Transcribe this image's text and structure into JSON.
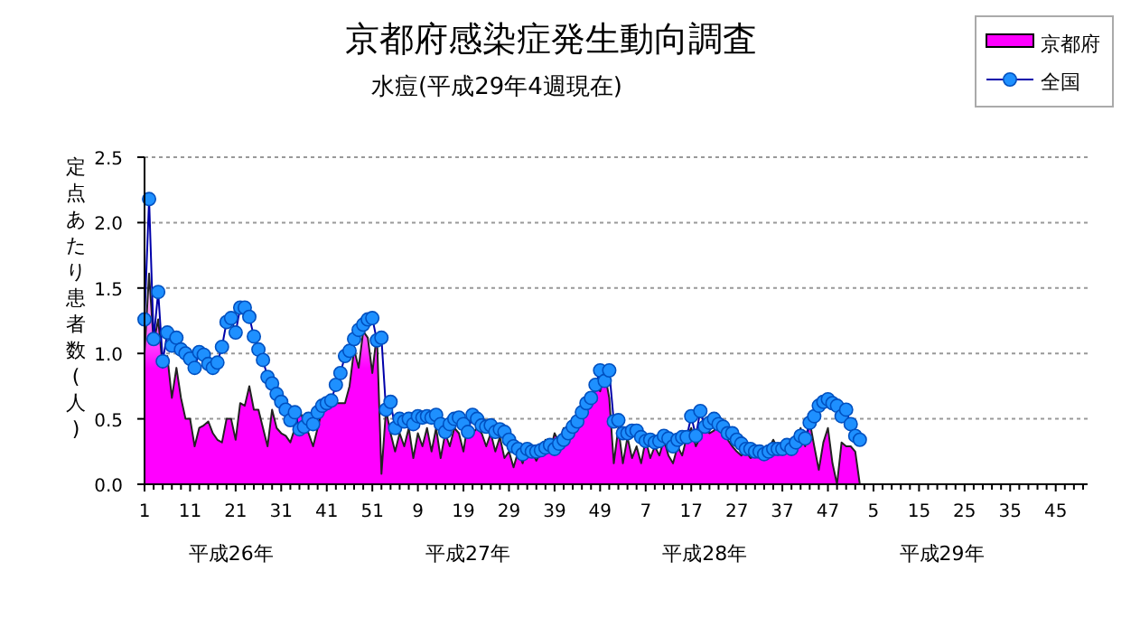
{
  "chart_data": {
    "type": "area",
    "title": "京都府感染症発生動向調査",
    "subtitle": "水痘(平成29年4週現在)",
    "ylabel": "定点あたり患者数(人)",
    "annotations": [
      "平成26年",
      "平成27年",
      "平成28年",
      "平成29年"
    ],
    "categories": [
      "1",
      null,
      null,
      null,
      null,
      null,
      null,
      null,
      null,
      null,
      "11",
      null,
      null,
      null,
      null,
      null,
      null,
      null,
      null,
      null,
      "21",
      null,
      null,
      null,
      null,
      null,
      null,
      null,
      null,
      null,
      "31",
      null,
      null,
      null,
      null,
      null,
      null,
      null,
      null,
      null,
      "41",
      null,
      null,
      null,
      null,
      null,
      null,
      null,
      null,
      null,
      "51",
      null,
      null,
      null,
      null,
      null,
      null,
      null,
      null,
      null,
      "9",
      null,
      null,
      null,
      null,
      null,
      null,
      null,
      null,
      null,
      "19",
      null,
      null,
      null,
      null,
      null,
      null,
      null,
      null,
      null,
      "29",
      null,
      null,
      null,
      null,
      null,
      null,
      null,
      null,
      null,
      "39",
      null,
      null,
      null,
      null,
      null,
      null,
      null,
      null,
      null,
      "49",
      null,
      null,
      null,
      null,
      null,
      null,
      null,
      null,
      null,
      "7",
      null,
      null,
      null,
      null,
      null,
      null,
      null,
      null,
      null,
      "17",
      null,
      null,
      null,
      null,
      null,
      null,
      null,
      null,
      null,
      "27",
      null,
      null,
      null,
      null,
      null,
      null,
      null,
      null,
      null,
      "37",
      null,
      null,
      null,
      null,
      null,
      null,
      null,
      null,
      null,
      "47",
      null,
      null,
      null,
      null,
      null,
      null,
      null,
      null,
      null,
      "5",
      null,
      null,
      null,
      null,
      null,
      null,
      null,
      null,
      null,
      "15",
      null,
      null,
      null,
      null,
      null,
      null,
      null,
      null,
      null,
      "25",
      null,
      null,
      null,
      null,
      null,
      null,
      null,
      null,
      null,
      "35",
      null,
      null,
      null,
      null,
      null,
      null,
      null,
      null,
      null,
      "45",
      null,
      null,
      null,
      null,
      null,
      null,
      null
    ],
    "ylim": [
      0,
      2.5
    ],
    "yticks": [
      {
        "value": 0,
        "label": "0.0"
      },
      {
        "value": 0.5,
        "label": "0.5"
      },
      {
        "value": 1,
        "label": "1.0"
      },
      {
        "value": 1.5,
        "label": "1.5"
      },
      {
        "value": 2,
        "label": "2.0"
      },
      {
        "value": 2.5,
        "label": "2.5"
      }
    ],
    "grid": "y",
    "legend": "top right",
    "series": [
      {
        "name": "京都府",
        "color": "#ff00ff",
        "values": [
          1.0,
          1.61,
          1.08,
          1.26,
          0.89,
          0.98,
          0.66,
          0.89,
          0.66,
          0.5,
          0.5,
          0.29,
          0.43,
          0.45,
          0.48,
          0.39,
          0.34,
          0.32,
          0.5,
          0.5,
          0.34,
          0.62,
          0.6,
          0.75,
          0.57,
          0.57,
          0.43,
          0.29,
          0.57,
          0.43,
          0.39,
          0.37,
          0.32,
          0.43,
          0.57,
          0.48,
          0.39,
          0.29,
          0.43,
          0.57,
          0.6,
          0.62,
          0.62,
          0.62,
          0.62,
          0.75,
          1.03,
          0.89,
          1.17,
          1.12,
          0.85,
          1.15,
          0.08,
          0.57,
          0.39,
          0.25,
          0.39,
          0.29,
          0.43,
          0.2,
          0.39,
          0.29,
          0.43,
          0.25,
          0.43,
          0.2,
          0.39,
          0.29,
          0.43,
          0.39,
          0.25,
          0.48,
          0.39,
          0.43,
          0.39,
          0.29,
          0.39,
          0.25,
          0.36,
          0.2,
          0.25,
          0.13,
          0.25,
          0.16,
          0.29,
          0.25,
          0.18,
          0.25,
          0.34,
          0.25,
          0.39,
          0.32,
          0.43,
          0.39,
          0.48,
          0.52,
          0.57,
          0.66,
          0.62,
          0.8,
          0.71,
          0.85,
          0.66,
          0.16,
          0.43,
          0.16,
          0.36,
          0.2,
          0.29,
          0.16,
          0.34,
          0.2,
          0.29,
          0.22,
          0.34,
          0.22,
          0.16,
          0.29,
          0.22,
          0.36,
          0.43,
          0.29,
          0.36,
          0.43,
          0.39,
          0.41,
          0.5,
          0.39,
          0.34,
          0.29,
          0.25,
          0.22,
          0.25,
          0.2,
          0.22,
          0.25,
          0.22,
          0.27,
          0.34,
          0.27,
          0.25,
          0.32,
          0.29,
          0.34,
          0.43,
          0.29,
          0.48,
          0.29,
          0.11,
          0.32,
          0.43,
          0.16,
          0,
          0.32,
          0.29,
          0.29,
          0.25,
          0,
          null,
          null,
          null,
          null,
          null,
          null,
          null,
          null,
          null,
          null,
          null,
          null,
          null,
          null,
          null,
          null,
          null,
          null,
          null,
          null,
          null,
          null,
          null,
          null,
          null,
          null,
          null,
          null,
          null,
          null,
          null,
          null,
          null,
          null,
          null,
          null,
          null,
          null,
          null,
          null,
          null,
          null,
          null,
          null,
          null,
          null,
          null,
          null,
          null,
          null
        ]
      },
      {
        "name": "全国",
        "type": "line",
        "color": "#1e90ff",
        "marker": "circle",
        "values": [
          1.26,
          2.18,
          1.11,
          1.47,
          0.94,
          1.16,
          1.06,
          1.12,
          1.03,
          1.0,
          0.96,
          0.89,
          1.01,
          0.99,
          0.92,
          0.89,
          0.93,
          1.05,
          1.24,
          1.27,
          1.16,
          1.35,
          1.35,
          1.28,
          1.13,
          1.03,
          0.95,
          0.82,
          0.77,
          0.69,
          0.63,
          0.57,
          0.49,
          0.55,
          0.42,
          0.44,
          0.5,
          0.46,
          0.55,
          0.6,
          0.62,
          0.64,
          0.76,
          0.85,
          0.98,
          1.02,
          1.11,
          1.18,
          1.22,
          1.26,
          1.27,
          1.1,
          1.12,
          0.57,
          0.63,
          0.43,
          0.5,
          0.48,
          0.5,
          0.46,
          0.52,
          0.51,
          0.52,
          0.51,
          0.53,
          0.46,
          0.4,
          0.46,
          0.5,
          0.51,
          0.46,
          0.4,
          0.53,
          0.5,
          0.45,
          0.44,
          0.45,
          0.4,
          0.42,
          0.4,
          0.34,
          0.29,
          0.27,
          0.23,
          0.27,
          0.25,
          0.25,
          0.26,
          0.28,
          0.3,
          0.27,
          0.31,
          0.34,
          0.39,
          0.44,
          0.48,
          0.55,
          0.62,
          0.66,
          0.76,
          0.87,
          0.79,
          0.87,
          0.48,
          0.49,
          0.39,
          0.39,
          0.41,
          0.41,
          0.36,
          0.33,
          0.34,
          0.32,
          0.33,
          0.37,
          0.35,
          0.29,
          0.34,
          0.36,
          0.36,
          0.52,
          0.37,
          0.56,
          0.44,
          0.47,
          0.5,
          0.46,
          0.44,
          0.39,
          0.39,
          0.34,
          0.31,
          0.27,
          0.27,
          0.25,
          0.25,
          0.23,
          0.25,
          0.27,
          0.27,
          0.27,
          0.3,
          0.27,
          0.32,
          0.37,
          0.35,
          0.47,
          0.52,
          0.6,
          0.63,
          0.65,
          0.62,
          0.6,
          0.52,
          0.57,
          0.46,
          0.37,
          0.34,
          null,
          null,
          null,
          null,
          null,
          null,
          null,
          null,
          null,
          null,
          null,
          null,
          null,
          null,
          null,
          null,
          null,
          null,
          null,
          null,
          null,
          null,
          null,
          null,
          null,
          null,
          null,
          null,
          null,
          null,
          null,
          null,
          null,
          null,
          null,
          null,
          null,
          null,
          null,
          null,
          null,
          null,
          null,
          null,
          null,
          null,
          null,
          null,
          null,
          null
        ]
      }
    ]
  }
}
